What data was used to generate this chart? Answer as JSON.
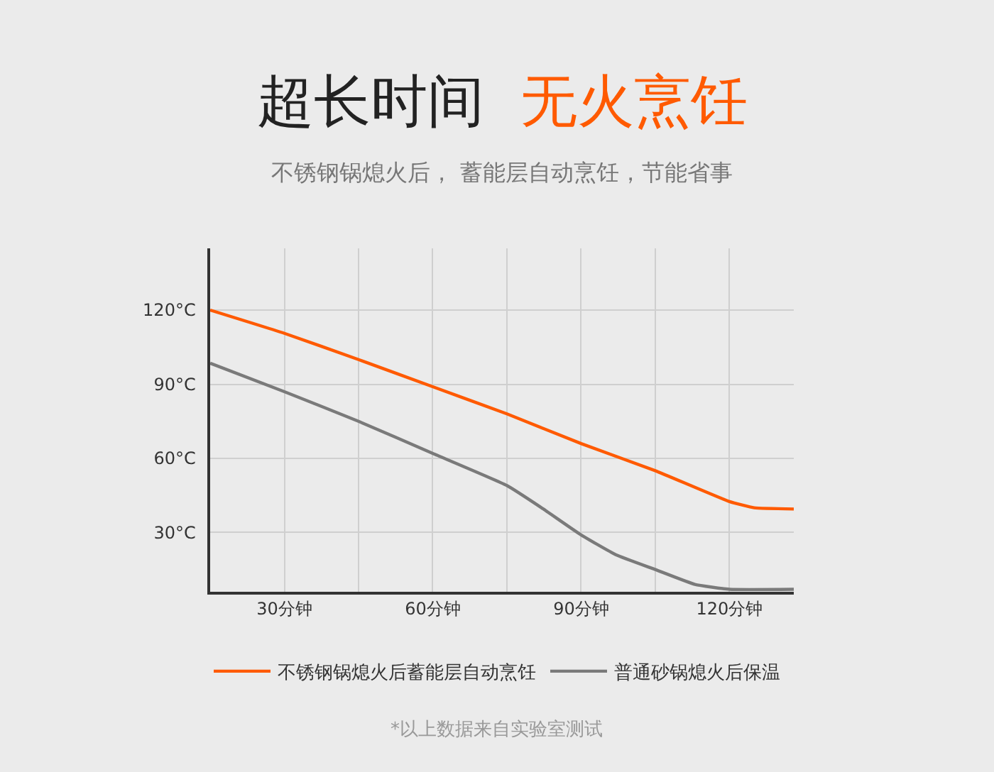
{
  "chart_data": {
    "type": "line",
    "title": "超长时间 无火烹饪",
    "subtitle": "不锈钢锅熄火后， 蓄能层自动烹饪，节能省事",
    "x": [
      15,
      30,
      45,
      60,
      75,
      90,
      105,
      120,
      125,
      133
    ],
    "series": [
      {
        "name": "不锈钢锅熄火后蓄能层自动烹饪",
        "color": "#ff5a00",
        "values": [
          120,
          110.6,
          100,
          89,
          78,
          66,
          55,
          42.5,
          40,
          39.5
        ]
      },
      {
        "name": "普通砂锅熄火后保温",
        "color": "#7a7a7a",
        "x": [
          15,
          30,
          45,
          60,
          75,
          82,
          90,
          97,
          105,
          113,
          120,
          133
        ],
        "values": [
          98.5,
          87,
          75,
          62,
          49,
          40,
          29,
          21,
          15,
          9,
          7,
          7
        ]
      }
    ],
    "xlim": [
      15,
      133
    ],
    "xticks": [
      {
        "value": 30,
        "label": "30分钟"
      },
      {
        "value": 45,
        "label": null
      },
      {
        "value": 60,
        "label": "60分钟"
      },
      {
        "value": 75,
        "label": null
      },
      {
        "value": 90,
        "label": "90分钟"
      },
      {
        "value": 105,
        "label": null
      },
      {
        "value": 120,
        "label": "120分钟"
      }
    ],
    "ylim": [
      6,
      145
    ],
    "yticks": [
      {
        "value": 30,
        "label": "30°C"
      },
      {
        "value": 60,
        "label": "60°C"
      },
      {
        "value": 90,
        "label": "90°C"
      },
      {
        "value": 120,
        "label": "120°C"
      }
    ],
    "grid": true,
    "legend": "bottom",
    "marker": "none",
    "line_style": "solid",
    "annotations": [
      "*以上数据来自实验室测试"
    ]
  }
}
